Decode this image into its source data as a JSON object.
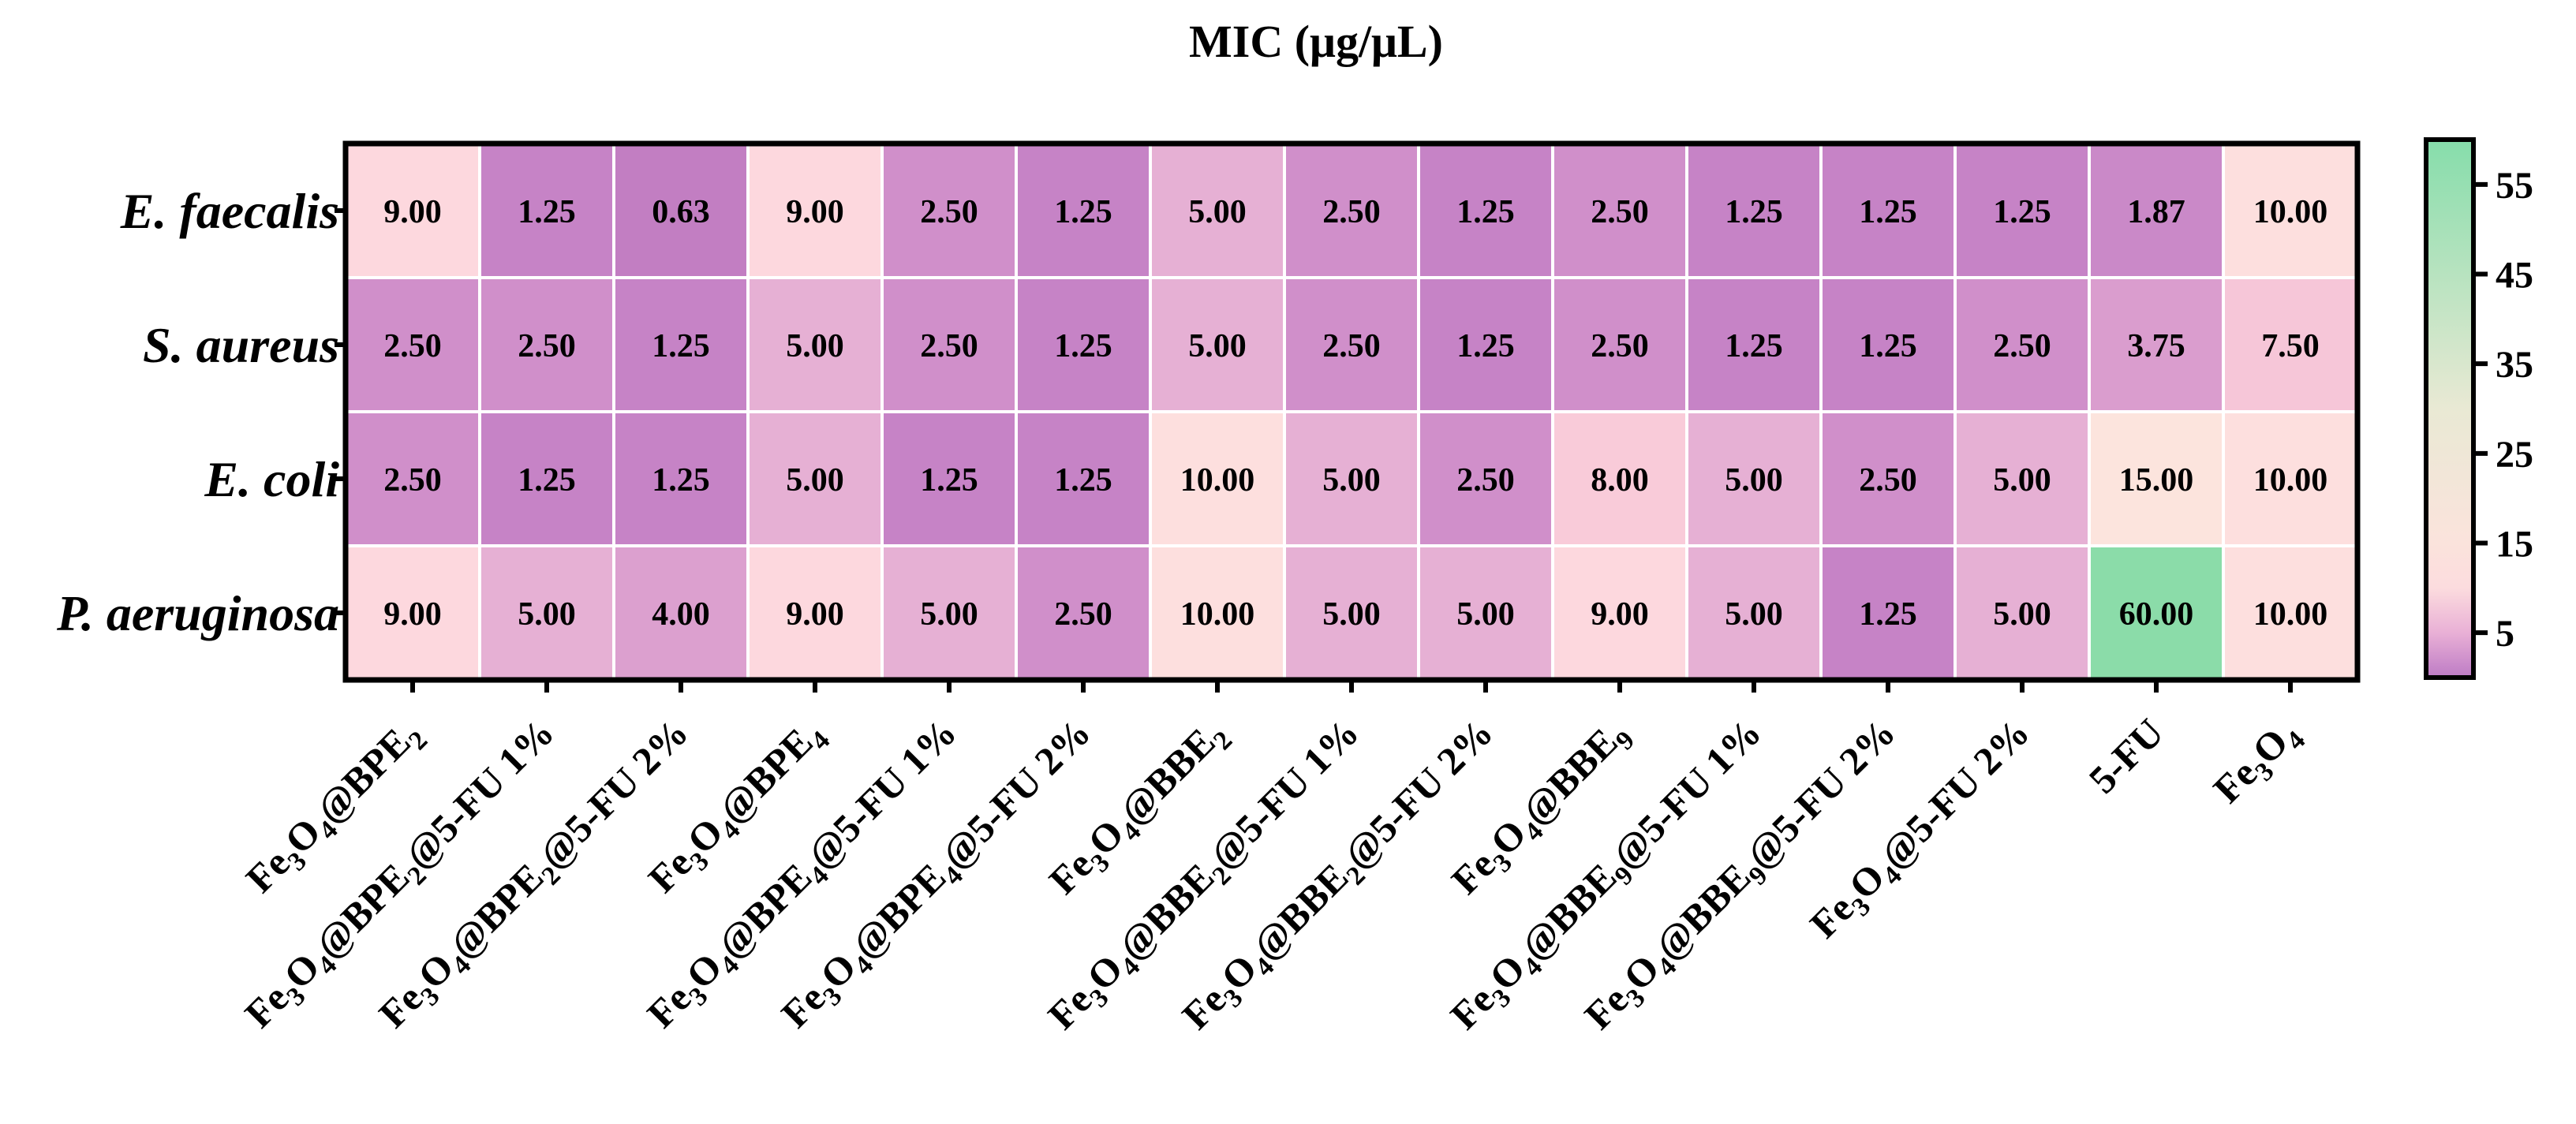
{
  "chart_data": {
    "type": "heatmap",
    "title": "MIC (μg/μL)",
    "rows": [
      "E. faecalis",
      "S. aureus",
      "E. coli",
      "P. aeruginosa"
    ],
    "columns": [
      {
        "base": "Fe",
        "parts": [
          [
            "Fe",
            ""
          ],
          [
            "3",
            "sub"
          ],
          [
            "O",
            ""
          ],
          [
            "4",
            "sub"
          ],
          [
            "@BPE",
            ""
          ],
          [
            "2",
            "sub"
          ]
        ]
      },
      {
        "parts": [
          [
            "Fe",
            ""
          ],
          [
            "3",
            "sub"
          ],
          [
            "O",
            ""
          ],
          [
            "4",
            "sub"
          ],
          [
            "@BPE",
            ""
          ],
          [
            "2",
            "sub"
          ],
          [
            "@5-FU 1%",
            ""
          ]
        ]
      },
      {
        "parts": [
          [
            "Fe",
            ""
          ],
          [
            "3",
            "sub"
          ],
          [
            "O",
            ""
          ],
          [
            "4",
            "sub"
          ],
          [
            "@BPE",
            ""
          ],
          [
            "2",
            "sub"
          ],
          [
            "@5-FU 2%",
            ""
          ]
        ]
      },
      {
        "parts": [
          [
            "Fe",
            ""
          ],
          [
            "3",
            "sub"
          ],
          [
            "O",
            ""
          ],
          [
            "4",
            "sub"
          ],
          [
            "@BPE",
            ""
          ],
          [
            "4",
            "sub"
          ]
        ]
      },
      {
        "parts": [
          [
            "Fe",
            ""
          ],
          [
            "3",
            "sub"
          ],
          [
            "O",
            ""
          ],
          [
            "4",
            "sub"
          ],
          [
            "@BPE",
            ""
          ],
          [
            "4",
            "sub"
          ],
          [
            "@5-FU 1%",
            ""
          ]
        ]
      },
      {
        "parts": [
          [
            "Fe",
            ""
          ],
          [
            "3",
            "sub"
          ],
          [
            "O",
            ""
          ],
          [
            "4",
            "sub"
          ],
          [
            "@BPE",
            ""
          ],
          [
            "4",
            "sub"
          ],
          [
            "@5-FU 2%",
            ""
          ]
        ]
      },
      {
        "parts": [
          [
            "Fe",
            ""
          ],
          [
            "3",
            "sub"
          ],
          [
            "O",
            ""
          ],
          [
            "4",
            "sub"
          ],
          [
            "@BBE",
            ""
          ],
          [
            "2",
            "sub"
          ]
        ]
      },
      {
        "parts": [
          [
            "Fe",
            ""
          ],
          [
            "3",
            "sub"
          ],
          [
            "O",
            ""
          ],
          [
            "4",
            "sub"
          ],
          [
            "@BBE",
            ""
          ],
          [
            "2",
            "sub"
          ],
          [
            "@5-FU 1%",
            ""
          ]
        ]
      },
      {
        "parts": [
          [
            "Fe",
            ""
          ],
          [
            "3",
            "sub"
          ],
          [
            "O",
            ""
          ],
          [
            "4",
            "sub"
          ],
          [
            "@BBE",
            ""
          ],
          [
            "2",
            "sub"
          ],
          [
            "@5-FU 2%",
            ""
          ]
        ]
      },
      {
        "parts": [
          [
            "Fe",
            ""
          ],
          [
            "3",
            "sub"
          ],
          [
            "O",
            ""
          ],
          [
            "4",
            "sub"
          ],
          [
            "@BBE",
            ""
          ],
          [
            "9",
            "sub"
          ]
        ]
      },
      {
        "parts": [
          [
            "Fe",
            ""
          ],
          [
            "3",
            "sub"
          ],
          [
            "O",
            ""
          ],
          [
            "4",
            "sub"
          ],
          [
            "@BBE",
            ""
          ],
          [
            "9",
            "sub"
          ],
          [
            "@5-FU 1%",
            ""
          ]
        ]
      },
      {
        "parts": [
          [
            "Fe",
            ""
          ],
          [
            "3",
            "sub"
          ],
          [
            "O",
            ""
          ],
          [
            "4",
            "sub"
          ],
          [
            "@BBE",
            ""
          ],
          [
            "9",
            "sub"
          ],
          [
            "@5-FU 2%",
            ""
          ]
        ]
      },
      {
        "parts": [
          [
            "Fe",
            ""
          ],
          [
            "3",
            "sub"
          ],
          [
            "O",
            ""
          ],
          [
            "4",
            "sub"
          ],
          [
            "@5-FU 2%",
            ""
          ]
        ]
      },
      {
        "parts": [
          [
            "5-FU",
            ""
          ]
        ]
      },
      {
        "parts": [
          [
            "Fe",
            ""
          ],
          [
            "3",
            "sub"
          ],
          [
            "O",
            ""
          ],
          [
            "4",
            "sub"
          ]
        ]
      }
    ],
    "values": [
      [
        "9.00",
        "1.25",
        "0.63",
        "9.00",
        "2.50",
        "1.25",
        "5.00",
        "2.50",
        "1.25",
        "2.50",
        "1.25",
        "1.25",
        "1.25",
        "1.87",
        "10.00"
      ],
      [
        "2.50",
        "2.50",
        "1.25",
        "5.00",
        "2.50",
        "1.25",
        "5.00",
        "2.50",
        "1.25",
        "2.50",
        "1.25",
        "1.25",
        "2.50",
        "3.75",
        "7.50"
      ],
      [
        "2.50",
        "1.25",
        "1.25",
        "5.00",
        "1.25",
        "1.25",
        "10.00",
        "5.00",
        "2.50",
        "8.00",
        "5.00",
        "2.50",
        "5.00",
        "15.00",
        "10.00"
      ],
      [
        "9.00",
        "5.00",
        "4.00",
        "9.00",
        "5.00",
        "2.50",
        "10.00",
        "5.00",
        "5.00",
        "9.00",
        "5.00",
        "1.25",
        "5.00",
        "60.00",
        "10.00"
      ]
    ],
    "colorbar": {
      "ticks": [
        5,
        15,
        25,
        35,
        45,
        55
      ],
      "range": [
        0,
        60
      ],
      "stops": [
        {
          "value": 0,
          "color": "#bd7bc5"
        },
        {
          "value": 5,
          "color": "#e9b0d6"
        },
        {
          "value": 10,
          "color": "#fcdcde"
        },
        {
          "value": 15,
          "color": "#fbe3dc"
        },
        {
          "value": 30,
          "color": "#e9e9d4"
        },
        {
          "value": 60,
          "color": "#86ddab"
        }
      ]
    },
    "cell_colors": {
      "0.63": "#c27ec2",
      "1.25": "#c683c6",
      "1.87": "#ca89c8",
      "2.50": "#d08fca",
      "3.75": "#da9dce",
      "4.00": "#dca0cf",
      "5.00": "#e6b0d4",
      "7.50": "#f6c6d8",
      "8.00": "#f9cbd9",
      "9.00": "#fdd8de",
      "10.00": "#fddfde",
      "15.00": "#fce4dd",
      "60.00": "#8bdca9"
    }
  }
}
